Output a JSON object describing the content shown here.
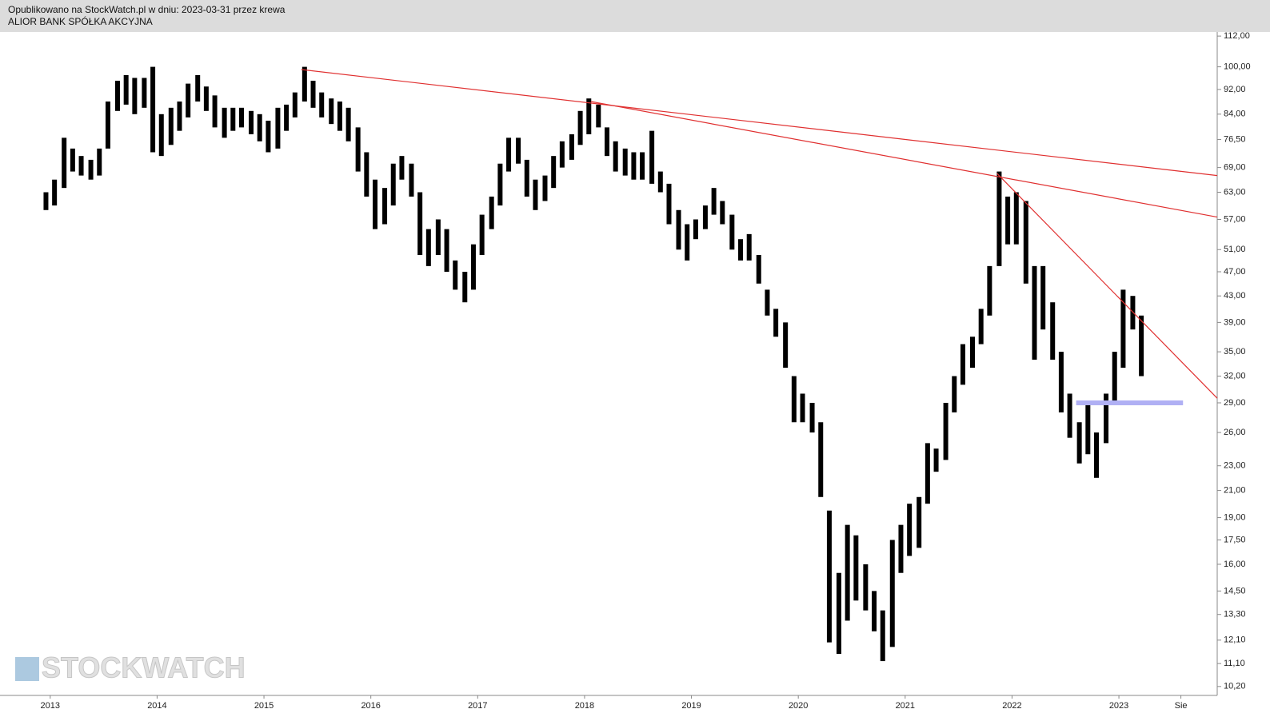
{
  "header": {
    "line1": "Opublikowano na StockWatch.pl w dniu: 2023-03-31 przez krewa",
    "line2": "ALIOR BANK SPÓŁKA AKCYJNA"
  },
  "watermark": "STOCKWATCH",
  "chart_data": {
    "type": "ohlc",
    "log_scale": true,
    "color": "#000000",
    "xlim": [
      2012.53,
      2023.92
    ],
    "ylim": [
      9.87,
      113.7
    ],
    "xticks": [
      2013,
      2014,
      2015,
      2016,
      2017,
      2018,
      2019,
      2020,
      2021,
      2022,
      2023,
      {
        "value": 2023.58,
        "label": "Sie"
      }
    ],
    "yticks": [
      {
        "value": 112,
        "label": "112,00"
      },
      {
        "value": 100,
        "label": "100,00"
      },
      {
        "value": 92,
        "label": "92,00"
      },
      {
        "value": 84,
        "label": "84,00"
      },
      {
        "value": 76.5,
        "label": "76,50"
      },
      {
        "value": 69,
        "label": "69,00"
      },
      {
        "value": 63,
        "label": "63,00"
      },
      {
        "value": 57,
        "label": "57,00"
      },
      {
        "value": 51,
        "label": "51,00"
      },
      {
        "value": 47,
        "label": "47,00"
      },
      {
        "value": 43,
        "label": "43,00"
      },
      {
        "value": 39,
        "label": "39,00"
      },
      {
        "value": 35,
        "label": "35,00"
      },
      {
        "value": 32,
        "label": "32,00"
      },
      {
        "value": 29,
        "label": "29,00"
      },
      {
        "value": 26,
        "label": "26,00"
      },
      {
        "value": 23,
        "label": "23,00"
      },
      {
        "value": 21,
        "label": "21,00"
      },
      {
        "value": 19,
        "label": "19,00"
      },
      {
        "value": 17.5,
        "label": "17,50"
      },
      {
        "value": 16,
        "label": "16,00"
      },
      {
        "value": 14.5,
        "label": "14,50"
      },
      {
        "value": 13.3,
        "label": "13,30"
      },
      {
        "value": 12.1,
        "label": "12,10"
      },
      {
        "value": 11.1,
        "label": "11,10"
      },
      {
        "value": 10.2,
        "label": "10,20"
      }
    ],
    "x": [
      2012.96,
      2013.04,
      2013.13,
      2013.21,
      2013.29,
      2013.38,
      2013.46,
      2013.54,
      2013.63,
      2013.71,
      2013.79,
      2013.88,
      2013.96,
      2014.04,
      2014.13,
      2014.21,
      2014.29,
      2014.38,
      2014.46,
      2014.54,
      2014.63,
      2014.71,
      2014.79,
      2014.88,
      2014.96,
      2015.04,
      2015.13,
      2015.21,
      2015.29,
      2015.38,
      2015.46,
      2015.54,
      2015.63,
      2015.71,
      2015.79,
      2015.88,
      2015.96,
      2016.04,
      2016.13,
      2016.21,
      2016.29,
      2016.38,
      2016.46,
      2016.54,
      2016.63,
      2016.71,
      2016.79,
      2016.88,
      2016.96,
      2017.04,
      2017.13,
      2017.21,
      2017.29,
      2017.38,
      2017.46,
      2017.54,
      2017.63,
      2017.71,
      2017.79,
      2017.88,
      2017.96,
      2018.04,
      2018.13,
      2018.21,
      2018.29,
      2018.38,
      2018.46,
      2018.54,
      2018.63,
      2018.71,
      2018.79,
      2018.88,
      2018.96,
      2019.04,
      2019.13,
      2019.21,
      2019.29,
      2019.38,
      2019.46,
      2019.54,
      2019.63,
      2019.71,
      2019.79,
      2019.88,
      2019.96,
      2020.04,
      2020.13,
      2020.21,
      2020.29,
      2020.38,
      2020.46,
      2020.54,
      2020.63,
      2020.71,
      2020.79,
      2020.88,
      2020.96,
      2021.04,
      2021.13,
      2021.21,
      2021.29,
      2021.38,
      2021.46,
      2021.54,
      2021.63,
      2021.71,
      2021.79,
      2021.88,
      2021.96,
      2022.04,
      2022.13,
      2022.21,
      2022.29,
      2022.38,
      2022.46,
      2022.54,
      2022.63,
      2022.71,
      2022.79,
      2022.88,
      2022.96,
      2023.04,
      2023.13,
      2023.21
    ],
    "low": [
      59,
      60,
      64,
      68,
      67,
      66,
      67,
      74,
      85,
      87,
      84,
      86,
      73,
      72,
      75,
      79,
      83,
      88,
      85,
      80,
      77,
      79,
      80,
      78,
      76,
      73,
      74,
      79,
      83,
      88,
      86,
      83,
      81,
      79,
      76,
      68,
      62,
      55,
      56,
      60,
      66,
      62,
      50,
      48,
      50,
      47,
      44,
      42,
      44,
      50,
      55,
      60,
      68,
      70,
      62,
      59,
      61,
      64,
      69,
      71,
      75,
      78,
      80,
      72,
      68,
      67,
      66,
      66,
      65,
      63,
      56,
      51,
      49,
      53,
      55,
      58,
      56,
      51,
      49,
      49,
      45,
      40,
      37,
      33,
      27,
      27,
      26,
      20.5,
      12,
      11.5,
      13,
      14,
      13.5,
      12.5,
      11.2,
      11.8,
      15.5,
      16.5,
      17,
      20,
      22.5,
      23.5,
      28,
      31,
      33,
      36,
      40,
      48,
      52,
      52,
      45,
      34,
      38,
      34,
      28,
      25.5,
      23.2,
      24,
      22,
      25,
      29,
      33,
      38,
      32
    ],
    "high": [
      63,
      66,
      77,
      74,
      72,
      71,
      74,
      88,
      95,
      97,
      96,
      96,
      100,
      84,
      86,
      88,
      94,
      97,
      93,
      90,
      86,
      86,
      86,
      85,
      84,
      82,
      86,
      87,
      91,
      100,
      95,
      91,
      89,
      88,
      86,
      80,
      73,
      66,
      64,
      70,
      72,
      70,
      63,
      55,
      57,
      55,
      49,
      47,
      52,
      58,
      62,
      70,
      77,
      77,
      71,
      66,
      67,
      72,
      76,
      78,
      85,
      89,
      87,
      80,
      76,
      74,
      73,
      73,
      79,
      68,
      65,
      59,
      56,
      57,
      60,
      64,
      61,
      58,
      53,
      54,
      50,
      44,
      41,
      39,
      32,
      30,
      29,
      27,
      19.5,
      15.5,
      18.5,
      17.8,
      16,
      14.5,
      13.5,
      17.5,
      18.5,
      20,
      20.5,
      25,
      24.5,
      29,
      32,
      36,
      37,
      41,
      48,
      68,
      62,
      63,
      61,
      48,
      48,
      42,
      35,
      30,
      27,
      29,
      26,
      30,
      35,
      44,
      43,
      40
    ],
    "trendlines": [
      {
        "color": "#e03030",
        "points": [
          [
            2015.35,
            99
          ],
          [
            2023.92,
            67
          ]
        ]
      },
      {
        "color": "#e03030",
        "points": [
          [
            2018.06,
            88
          ],
          [
            2023.92,
            57.5
          ]
        ]
      },
      {
        "color": "#e03030",
        "points": [
          [
            2021.86,
            67.5
          ],
          [
            2023.92,
            29.5
          ]
        ]
      }
    ],
    "levels": [
      {
        "color": "#b0b0f4",
        "value": 29,
        "from": 2022.6,
        "to": 2023.6
      }
    ]
  }
}
